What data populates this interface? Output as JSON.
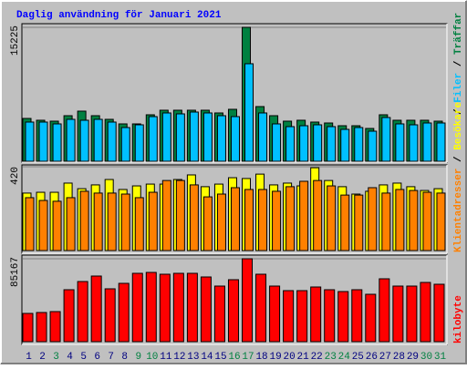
{
  "title": "Daglig användning för Januari 2021",
  "chart_data": [
    {
      "type": "bar",
      "legend_separator": "/",
      "categories": [
        "1",
        "2",
        "3",
        "4",
        "5",
        "6",
        "7",
        "8",
        "9",
        "10",
        "11",
        "12",
        "13",
        "14",
        "15",
        "16",
        "17",
        "18",
        "19",
        "20",
        "21",
        "22",
        "23",
        "24",
        "25",
        "26",
        "27",
        "28",
        "29",
        "30",
        "31"
      ],
      "category_label_colors": [
        "#000080",
        "#000080",
        "#008040",
        "#000080",
        "#000080",
        "#000080",
        "#000080",
        "#000080",
        "#008040",
        "#008040",
        "#000080",
        "#000080",
        "#000080",
        "#000080",
        "#000080",
        "#008040",
        "#008040",
        "#000080",
        "#000080",
        "#000080",
        "#000080",
        "#000080",
        "#008040",
        "#008040",
        "#000080",
        "#000080",
        "#000080",
        "#000080",
        "#000080",
        "#008040",
        "#008040"
      ],
      "ylim": [
        0,
        15225
      ],
      "yticks": [
        15225
      ],
      "grid": true,
      "series": [
        {
          "name": "Träffar",
          "color": "#008040",
          "values": [
            4869,
            4662,
            4558,
            5180,
            5698,
            5180,
            4766,
            4248,
            4248,
            5284,
            5802,
            5802,
            5802,
            5802,
            5491,
            5905,
            15225,
            6216,
            5180,
            4558,
            4662,
            4455,
            4351,
            4040,
            4040,
            3730,
            5284,
            4662,
            4662,
            4662,
            4558
          ]
        },
        {
          "name": "Filer",
          "color": "#00c0ff",
          "values": [
            4455,
            4455,
            4248,
            4766,
            4662,
            4766,
            4455,
            3833,
            4144,
            5076,
            5491,
            5387,
            5594,
            5491,
            5180,
            5076,
            11085,
            5491,
            4248,
            3937,
            4040,
            4144,
            3937,
            3626,
            3833,
            3419,
            4973,
            4248,
            4144,
            4351,
            4351
          ]
        }
      ]
    },
    {
      "type": "bar",
      "legend_separator": "/",
      "ylim": [
        0,
        420
      ],
      "yticks": [
        420
      ],
      "grid": true,
      "series": [
        {
          "name": "Besökare",
          "color": "#ffff00",
          "values": [
            288,
            292,
            292,
            338,
            310,
            329,
            356,
            306,
            324,
            333,
            333,
            356,
            379,
            320,
            333,
            365,
            361,
            383,
            329,
            338,
            324,
            415,
            351,
            320,
            283,
            297,
            329,
            338,
            320,
            301,
            310
          ]
        },
        {
          "name": "Klientadresser",
          "color": "#ff8000",
          "values": [
            265,
            251,
            247,
            265,
            297,
            288,
            288,
            283,
            265,
            292,
            351,
            351,
            329,
            269,
            283,
            315,
            306,
            306,
            297,
            320,
            347,
            351,
            324,
            278,
            278,
            315,
            288,
            306,
            301,
            292,
            288
          ]
        }
      ]
    },
    {
      "type": "bar",
      "ylim": [
        0,
        85167
      ],
      "yticks": [
        85167
      ],
      "grid": true,
      "series": [
        {
          "name": "kilobyte",
          "color": "#ff0000",
          "values": [
            29016,
            29952,
            30888,
            53352,
            61776,
            67392,
            54288,
            59904,
            70200,
            71136,
            69264,
            70200,
            70200,
            66456,
            57096,
            63648,
            85167,
            69264,
            57096,
            52416,
            52416,
            56160,
            53352,
            51480,
            53352,
            48672,
            64584,
            57096,
            57096,
            60840,
            58968
          ]
        }
      ]
    }
  ]
}
